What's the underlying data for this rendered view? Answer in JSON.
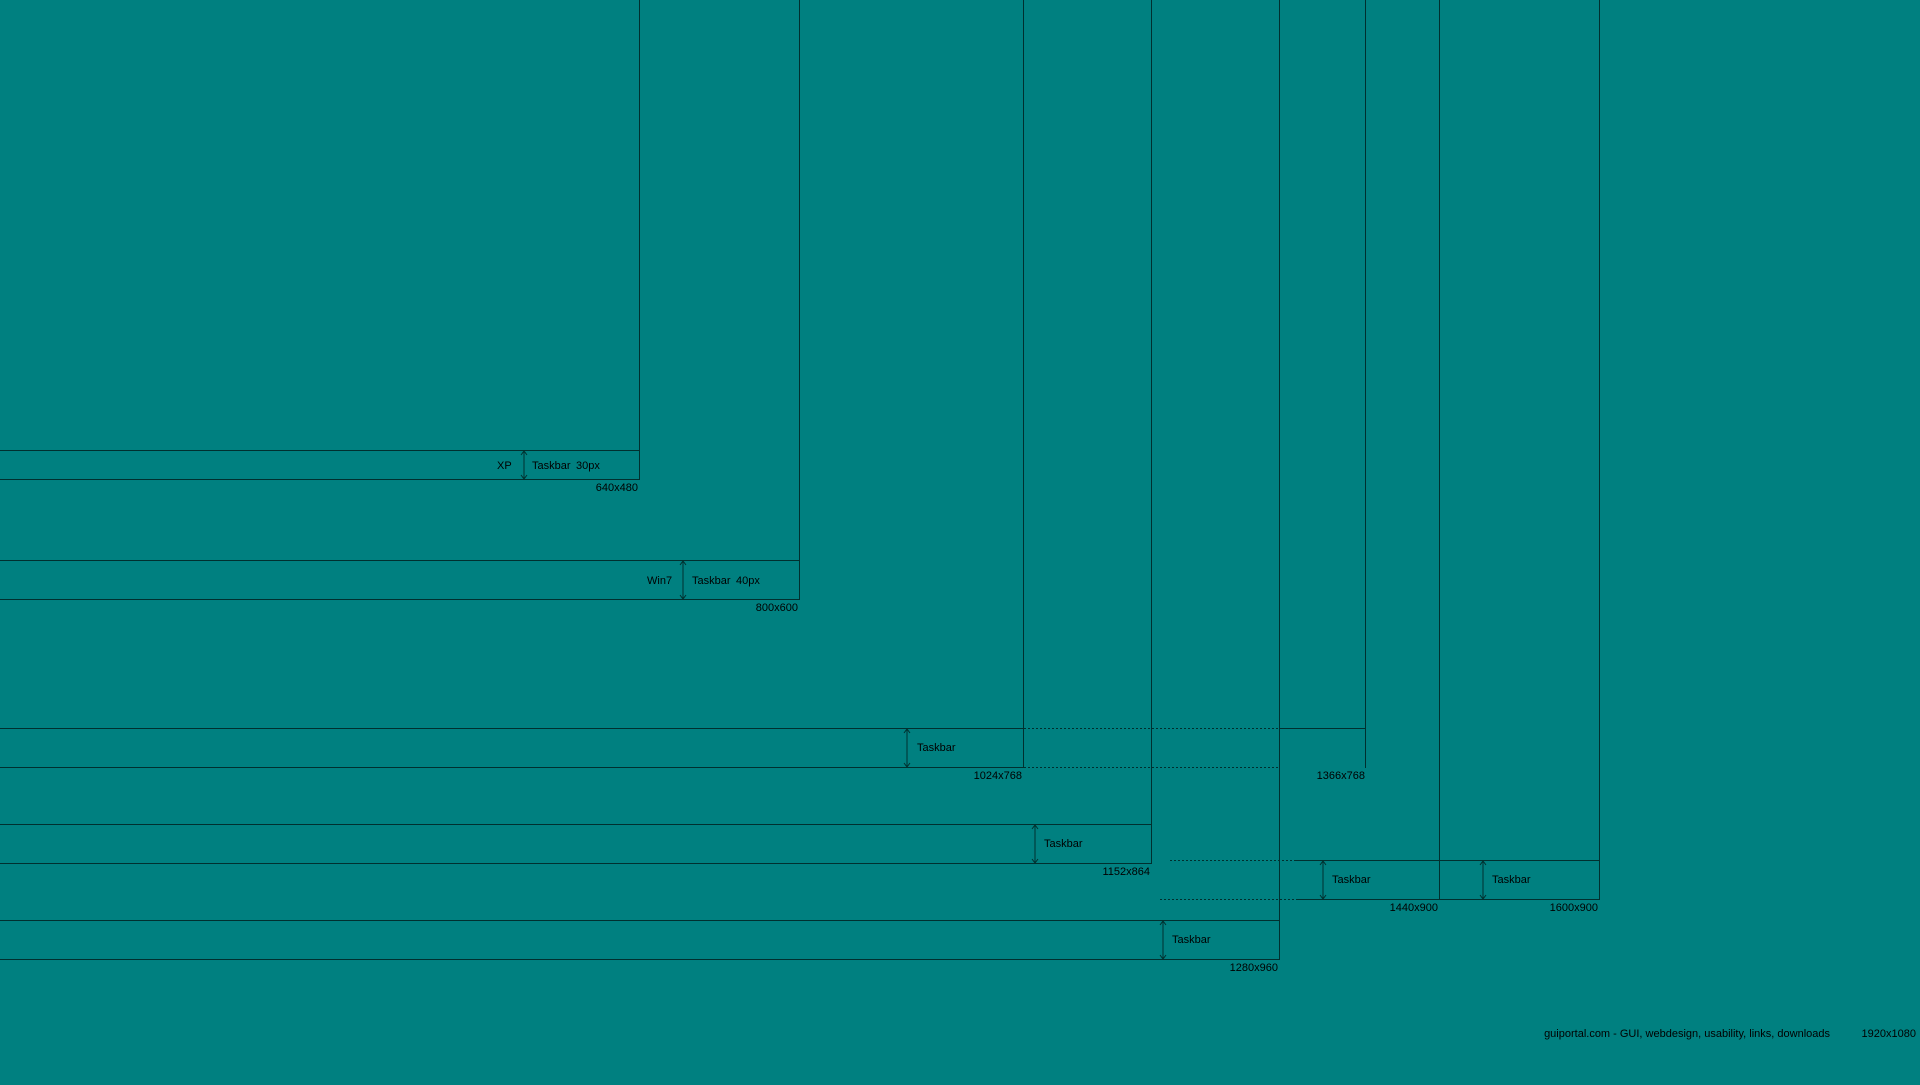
{
  "colors": {
    "background": "#008080",
    "lines": "#00302f",
    "text": "#000000"
  },
  "screen_size": "1920x1080",
  "credit": "guiportal.com - GUI, webdesign, usability, links, downloads",
  "resolutions": [
    {
      "id": "640x480",
      "label": "640x480",
      "os": "XP",
      "taskbar_label": "Taskbar",
      "taskbar_size": "30px"
    },
    {
      "id": "800x600",
      "label": "800x600",
      "os": "Win7",
      "taskbar_label": "Taskbar",
      "taskbar_size": "40px"
    },
    {
      "id": "1024x768",
      "label": "1024x768",
      "os": "",
      "taskbar_label": "Taskbar",
      "taskbar_size": ""
    },
    {
      "id": "1366x768",
      "label": "1366x768",
      "os": "",
      "taskbar_label": "",
      "taskbar_size": ""
    },
    {
      "id": "1152x864",
      "label": "1152x864",
      "os": "",
      "taskbar_label": "Taskbar",
      "taskbar_size": ""
    },
    {
      "id": "1440x900",
      "label": "1440x900",
      "os": "",
      "taskbar_label": "Taskbar",
      "taskbar_size": ""
    },
    {
      "id": "1600x900",
      "label": "1600x900",
      "os": "",
      "taskbar_label": "Taskbar",
      "taskbar_size": ""
    },
    {
      "id": "1280x960",
      "label": "1280x960",
      "os": "",
      "taskbar_label": "Taskbar",
      "taskbar_size": ""
    }
  ]
}
